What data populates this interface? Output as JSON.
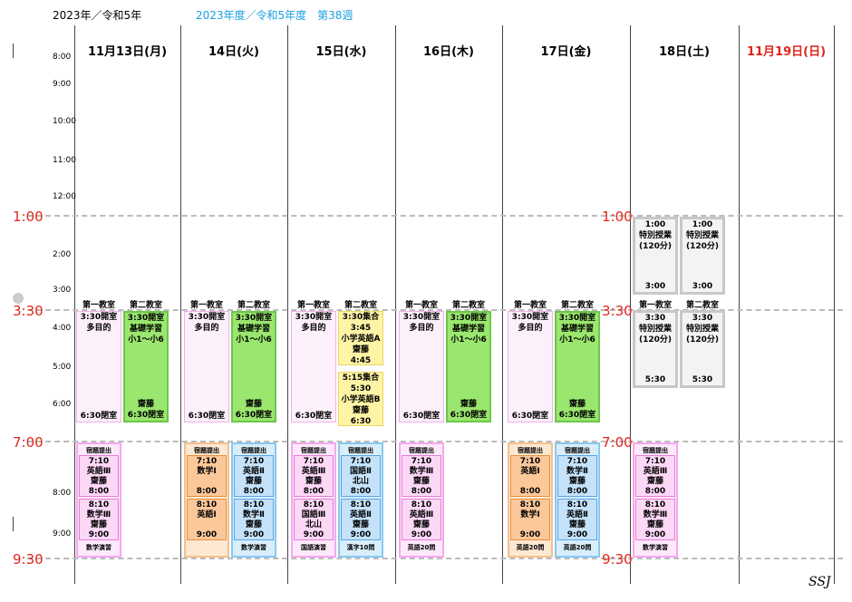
{
  "header": {
    "year": "2023年／令和5年",
    "fiscal": "2023年度／令和5年度　第38週"
  },
  "colors": {
    "accent_blue": "#1aa0e0",
    "sunday_red": "#e0241c"
  },
  "days": [
    "11月13日(月)",
    "14日(火)",
    "15日(水)",
    "16日(木)",
    "17日(金)",
    "18日(土)",
    "11月19日(日)"
  ],
  "times": {
    "t800": "8:00",
    "t900": "9:00",
    "t1000": "10:00",
    "t1100": "11:00",
    "t1200": "12:00",
    "t200": "2:00",
    "t300": "3:00",
    "t400": "4:00",
    "t500": "5:00",
    "t600": "6:00",
    "t800b": "8:00",
    "t900b": "9:00"
  },
  "big_times": {
    "t100": "1:00",
    "t330": "3:30",
    "t700": "7:00",
    "t930": "9:30"
  },
  "rooms": {
    "room1": "第一教室",
    "room2": "第二教室"
  },
  "afternoon": {
    "open": "3:30開室",
    "multi": "多目的",
    "close": "6:30閉室",
    "basic_open": "3:30開室",
    "basic": "基礎学習",
    "grades": "小1～小6",
    "teacher": "齋藤",
    "basic_close": "6:30閉室",
    "wed_a": {
      "l1": "3:30集合",
      "l2": "3:45",
      "l3": "小学英語A",
      "l4": "齋藤",
      "l5": "4:45"
    },
    "wed_b": {
      "l1": "5:15集合",
      "l2": "5:30",
      "l3": "小学英語B",
      "l4": "齋藤",
      "l5": "6:30"
    }
  },
  "saturday": {
    "s1": {
      "l1": "1:00",
      "l2": "特別授業",
      "l3": "(120分)",
      "l4": "3:00"
    },
    "s2": {
      "l1": "3:30",
      "l2": "特別授業",
      "l3": "(120分)",
      "l4": "5:30"
    }
  },
  "evening": {
    "homework": "宿題提出",
    "mon": {
      "a": [
        "7:10",
        "英語Ⅲ",
        "齋藤",
        "8:00"
      ],
      "b": [
        "8:10",
        "数学Ⅲ",
        "齋藤",
        "9:00"
      ],
      "foot": "数学演習"
    },
    "tue1": {
      "a": [
        "7:10",
        "数学Ⅰ",
        "",
        "8:00"
      ],
      "b": [
        "8:10",
        "英語Ⅰ",
        "",
        "9:00"
      ]
    },
    "tue2": {
      "a": [
        "7:10",
        "英語Ⅱ",
        "齋藤",
        "8:00"
      ],
      "b": [
        "8:10",
        "数学Ⅱ",
        "齋藤",
        "9:00"
      ],
      "foot": "数学演習"
    },
    "wed1": {
      "a": [
        "7:10",
        "英語Ⅲ",
        "齋藤",
        "8:00"
      ],
      "b": [
        "8:10",
        "国語Ⅲ",
        "北山",
        "9:00"
      ],
      "foot": "国語演習"
    },
    "wed2": {
      "a": [
        "7:10",
        "国語Ⅱ",
        "北山",
        "8:00"
      ],
      "b": [
        "8:10",
        "英語Ⅱ",
        "齋藤",
        "9:00"
      ],
      "foot": "漢字10問"
    },
    "thu": {
      "a": [
        "7:10",
        "数学Ⅲ",
        "齋藤",
        "8:00"
      ],
      "b": [
        "8:10",
        "英語Ⅲ",
        "齋藤",
        "9:00"
      ],
      "foot": "英語20問"
    },
    "fri1": {
      "a": [
        "7:10",
        "英語Ⅰ",
        "",
        "8:00"
      ],
      "b": [
        "8:10",
        "数学Ⅰ",
        "",
        "9:00"
      ],
      "foot": "英語20問"
    },
    "fri2": {
      "a": [
        "7:10",
        "数学Ⅱ",
        "齋藤",
        "8:00"
      ],
      "b": [
        "8:10",
        "英語Ⅱ",
        "齋藤",
        "9:00"
      ],
      "foot": "英語20問"
    },
    "sat": {
      "a": [
        "7:10",
        "英語Ⅲ",
        "齋藤",
        "8:00"
      ],
      "b": [
        "8:10",
        "数学Ⅲ",
        "齋藤",
        "9:00"
      ],
      "foot": "数学演習"
    }
  },
  "footer": {
    "mark": "SSJ"
  }
}
